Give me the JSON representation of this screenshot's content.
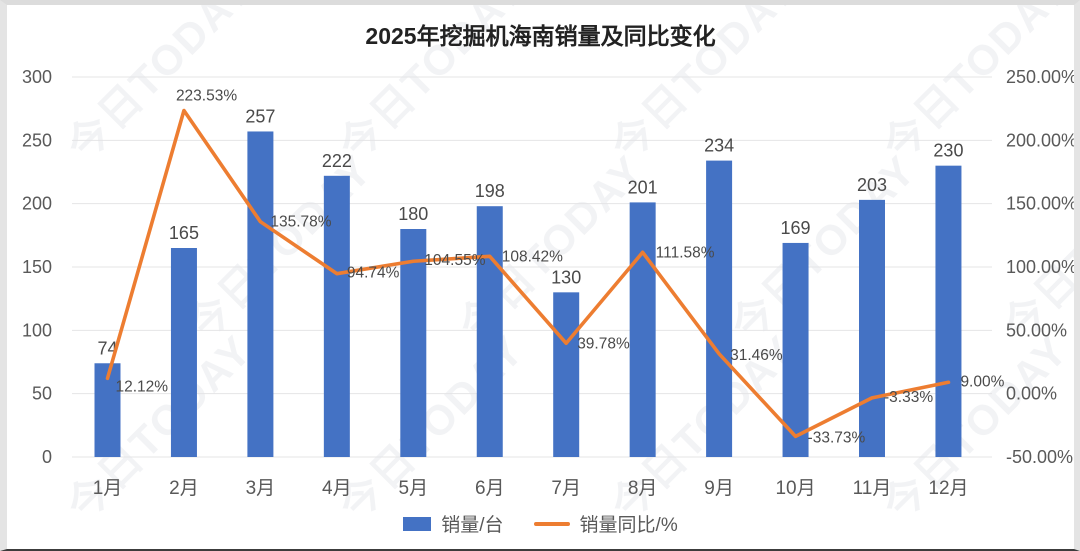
{
  "title": "2025年挖掘机海南销量及同比变化",
  "watermark_text": "今日TODAY",
  "legend": [
    {
      "label": "销量/台",
      "type": "bar",
      "color": "#4472C4"
    },
    {
      "label": "销量同比/%",
      "type": "line",
      "color": "#ED7D31"
    }
  ],
  "chart_data": {
    "type": "bar+line combo",
    "title": "2025年挖掘机海南销量及同比变化",
    "categories": [
      "1月",
      "2月",
      "3月",
      "4月",
      "5月",
      "6月",
      "7月",
      "8月",
      "9月",
      "10月",
      "11月",
      "12月"
    ],
    "series": [
      {
        "name": "销量/台",
        "type": "bar",
        "axis": "left",
        "color": "#4472C4",
        "values": [
          74,
          165,
          257,
          222,
          180,
          198,
          130,
          201,
          234,
          169,
          203,
          230
        ],
        "labels": [
          "74",
          "165",
          "257",
          "222",
          "180",
          "198",
          "130",
          "201",
          "234",
          "169",
          "203",
          "230"
        ]
      },
      {
        "name": "销量同比/%",
        "type": "line",
        "axis": "right",
        "color": "#ED7D31",
        "values": [
          12.12,
          223.53,
          135.78,
          94.74,
          104.55,
          108.42,
          39.78,
          111.58,
          31.46,
          -33.73,
          -3.33,
          9.0
        ],
        "labels": [
          "12.12%",
          "223.53%",
          "135.78%",
          "94.74%",
          "104.55%",
          "108.42%",
          "39.78%",
          "111.58%",
          "31.46%",
          "-33.73%",
          "-3.33%",
          "9.00%"
        ]
      }
    ],
    "left_axis": {
      "min": 0,
      "max": 300,
      "tick_values": [
        0,
        50,
        100,
        150,
        200,
        250,
        300
      ],
      "tick_labels": [
        "0",
        "50",
        "100",
        "150",
        "200",
        "250",
        "300"
      ]
    },
    "right_axis": {
      "min": -50,
      "max": 250,
      "tick_values": [
        -50,
        0,
        50,
        100,
        150,
        200,
        250
      ],
      "tick_labels": [
        "-50.00%",
        "0.00%",
        "50.00%",
        "100.00%",
        "150.00%",
        "200.00%",
        "250.00%"
      ]
    },
    "grid": true,
    "legend_position": "bottom",
    "colors": {
      "bar": "#4472C4",
      "line": "#ED7D31",
      "gridline": "#e4e4e6",
      "tick_text": "#595959",
      "data_label_text": "#4a4a4a",
      "title_text": "#222222"
    }
  }
}
